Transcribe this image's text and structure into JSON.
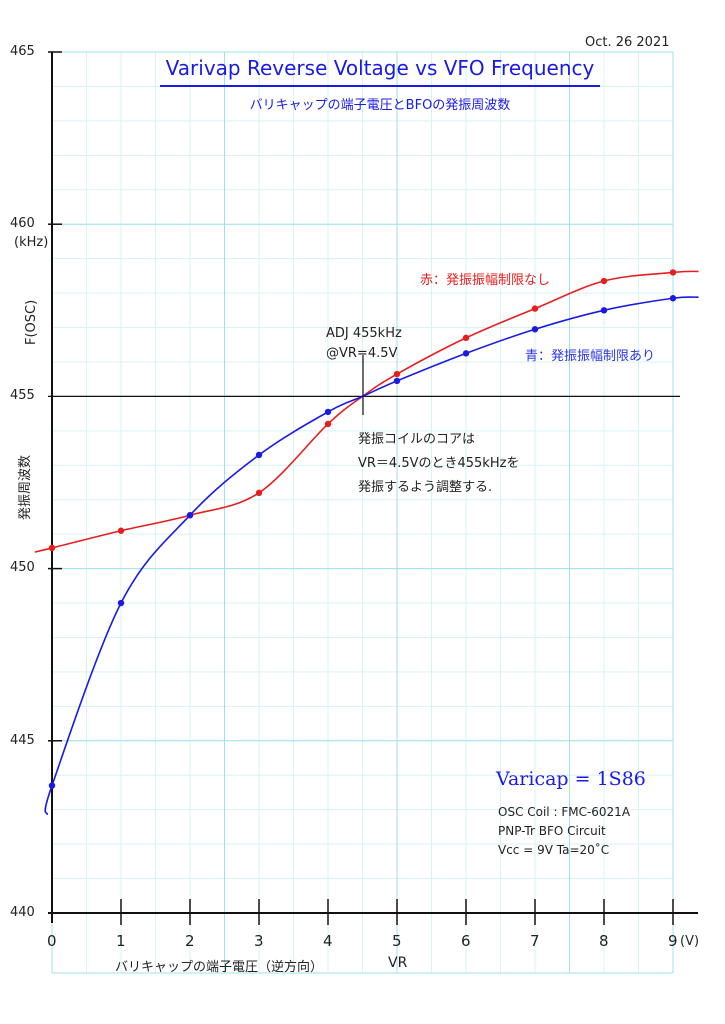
{
  "header": {
    "date": "Oct. 26  2021",
    "title": "Varivap Reverse Voltage vs VFO Frequency",
    "subtitle": "バリキャップの端子電圧とBFOの発振周波数"
  },
  "axes": {
    "y_ticks": [
      "465",
      "460",
      "455",
      "450",
      "445",
      "440"
    ],
    "y_unit": "(kHz)",
    "y_symbol": "F(OSC)",
    "y_title": "発振周波数",
    "x_ticks": [
      "0",
      "1",
      "2",
      "3",
      "4",
      "5",
      "6",
      "7",
      "8",
      "9"
    ],
    "x_unit": "(V)",
    "x_title_jp": "バリキャップの端子電圧（逆方向）",
    "x_title_sym": "VR"
  },
  "annotations": {
    "legend_red": "赤：発振振幅制限なし",
    "legend_blue": "青：発振振幅制限あり",
    "adj_line1": "ADJ 455kHz",
    "adj_line2": "@VR=4.5V",
    "note_line1": "発振コイルのコアは",
    "note_line2": "VR＝4.5Vのとき455kHzを",
    "note_line3": "発振するよう調整する.",
    "varicap": "Varicap = 1S86",
    "spec_line1": "OSC Coil : FMC-6021A",
    "spec_line2": "PNP-Tr  BFO  Circuit",
    "spec_line3": "Vcc = 9V  Ta=20˚C"
  },
  "colors": {
    "red": "#e61e1e",
    "blue": "#1a1ae6",
    "grid": "#9fe3e8",
    "grid_minor": "#d8f3f5",
    "axis": "#111111"
  },
  "chart_data": {
    "type": "line",
    "title": "Varivap Reverse Voltage vs VFO Frequency",
    "subtitle": "バリキャップの端子電圧とBFOの発振周波数",
    "xlabel": "バリキャップの端子電圧（逆方向） VR (V)",
    "ylabel": "発振周波数 F(OSC) (kHz)",
    "x": [
      0,
      1,
      2,
      3,
      4,
      5,
      6,
      7,
      8,
      9
    ],
    "xlim": [
      0,
      9
    ],
    "ylim": [
      440,
      465
    ],
    "grid": true,
    "series": [
      {
        "name": "赤：発振振幅制限なし",
        "color": "#e61e1e",
        "values": [
          450.6,
          451.1,
          451.55,
          452.2,
          454.2,
          455.65,
          456.7,
          457.55,
          458.35,
          458.6
        ]
      },
      {
        "name": "青：発振振幅制限あり",
        "color": "#1a1ae6",
        "values": [
          443.7,
          449.0,
          451.55,
          453.3,
          454.55,
          455.45,
          456.25,
          456.95,
          457.5,
          457.85
        ]
      }
    ],
    "reference": {
      "x": 4.5,
      "y": 455,
      "label": "ADJ 455kHz @VR=4.5V"
    }
  }
}
